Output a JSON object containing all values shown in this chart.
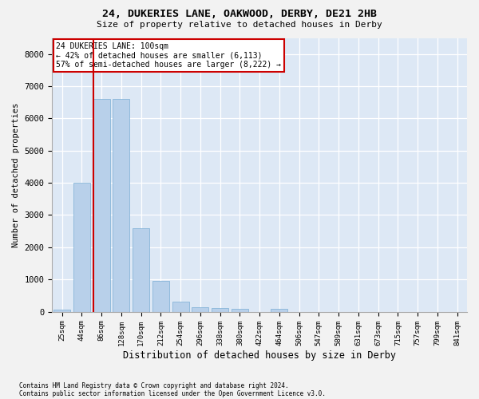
{
  "title1": "24, DUKERIES LANE, OAKWOOD, DERBY, DE21 2HB",
  "title2": "Size of property relative to detached houses in Derby",
  "xlabel": "Distribution of detached houses by size in Derby",
  "ylabel": "Number of detached properties",
  "bin_labels": [
    "25sqm",
    "44sqm",
    "86sqm",
    "128sqm",
    "170sqm",
    "212sqm",
    "254sqm",
    "296sqm",
    "338sqm",
    "380sqm",
    "422sqm",
    "464sqm",
    "506sqm",
    "547sqm",
    "589sqm",
    "631sqm",
    "673sqm",
    "715sqm",
    "757sqm",
    "799sqm",
    "841sqm"
  ],
  "bar_values": [
    60,
    4000,
    6600,
    6600,
    2600,
    950,
    320,
    130,
    120,
    80,
    0,
    90,
    0,
    0,
    0,
    0,
    0,
    0,
    0,
    0,
    0
  ],
  "bar_color": "#b8d0ea",
  "bar_edge_color": "#7aaed4",
  "plot_bg_color": "#dde8f5",
  "grid_color": "#ffffff",
  "vline_color": "#cc0000",
  "vline_x": 1.57,
  "annotation_title": "24 DUKERIES LANE: 100sqm",
  "annotation_line1": "← 42% of detached houses are smaller (6,113)",
  "annotation_line2": "57% of semi-detached houses are larger (8,222) →",
  "annotation_box_edgecolor": "#cc0000",
  "ylim": [
    0,
    8500
  ],
  "yticks": [
    0,
    1000,
    2000,
    3000,
    4000,
    5000,
    6000,
    7000,
    8000
  ],
  "fig_bg_color": "#f2f2f2",
  "footer1": "Contains HM Land Registry data © Crown copyright and database right 2024.",
  "footer2": "Contains public sector information licensed under the Open Government Licence v3.0."
}
